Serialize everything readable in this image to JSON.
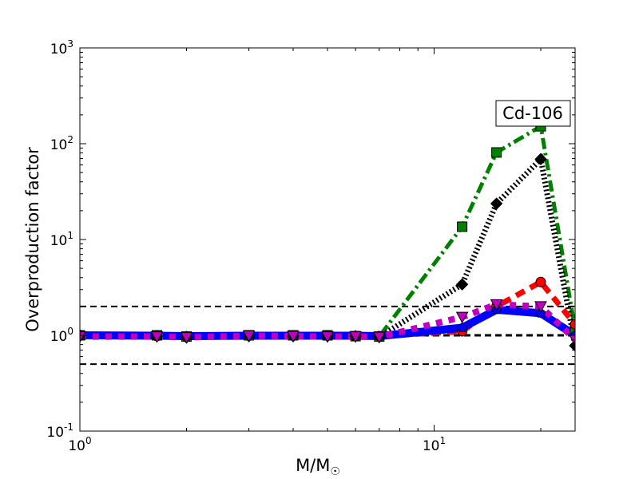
{
  "chart_data": {
    "type": "line",
    "title": "",
    "annotation": "Cd-106",
    "xlabel": "M/M",
    "xlabel_sub": "☉",
    "ylabel": "Overproduction factor",
    "xscale": "log",
    "yscale": "log",
    "xlim": [
      1,
      25
    ],
    "ylim": [
      0.1,
      1000
    ],
    "xticks": [
      {
        "v": 1,
        "b": "10",
        "e": "0"
      },
      {
        "v": 10,
        "b": "10",
        "e": "1"
      }
    ],
    "yticks": [
      {
        "v": 0.1,
        "b": "10",
        "e": "-1"
      },
      {
        "v": 1,
        "b": "10",
        "e": "0"
      },
      {
        "v": 10,
        "b": "10",
        "e": "1"
      },
      {
        "v": 100,
        "b": "10",
        "e": "2"
      },
      {
        "v": 1000,
        "b": "10",
        "e": "3"
      }
    ],
    "reference_lines": [
      0.5,
      1,
      2
    ],
    "x": [
      1,
      1.65,
      2,
      3,
      4,
      5,
      6,
      7,
      12,
      15,
      20,
      25
    ],
    "series": [
      {
        "name": "green-dashdot-squares",
        "color": "#008000",
        "marker": "square",
        "dash": "14,5,3,5",
        "width": 5,
        "values": [
          1,
          1,
          0.97,
          1,
          1,
          1,
          0.98,
          0.97,
          13.6,
          81,
          152,
          1.15
        ]
      },
      {
        "name": "black-dotted-diamonds",
        "color": "#000000",
        "marker": "diamond",
        "dash": "2,3",
        "width": 7,
        "values": [
          1,
          0.98,
          0.95,
          0.98,
          0.98,
          0.98,
          0.98,
          0.96,
          3.4,
          23.7,
          69,
          0.78
        ]
      },
      {
        "name": "red-dashed-circles",
        "color": "#ff0000",
        "marker": "circle",
        "dash": "12,8",
        "width": 7,
        "values": [
          1,
          0.98,
          0.97,
          1,
          1,
          0.99,
          0.98,
          0.98,
          1.1,
          2.0,
          3.6,
          1.3
        ]
      },
      {
        "name": "blue-solid-pentagons",
        "color": "#0000ff",
        "marker": "pentagon",
        "dash": "",
        "width": 10,
        "values": [
          1,
          0.99,
          0.98,
          0.99,
          0.99,
          0.99,
          0.99,
          0.98,
          1.2,
          1.85,
          1.7,
          1.0
        ]
      },
      {
        "name": "magenta-dotted-triangles",
        "color": "#bf00bf",
        "marker": "triangle-down",
        "dash": "8,8",
        "width": 8,
        "values": [
          0.97,
          0.97,
          0.95,
          0.99,
          0.98,
          0.97,
          0.97,
          0.96,
          1.55,
          2.1,
          2.0,
          0.9
        ]
      }
    ]
  }
}
